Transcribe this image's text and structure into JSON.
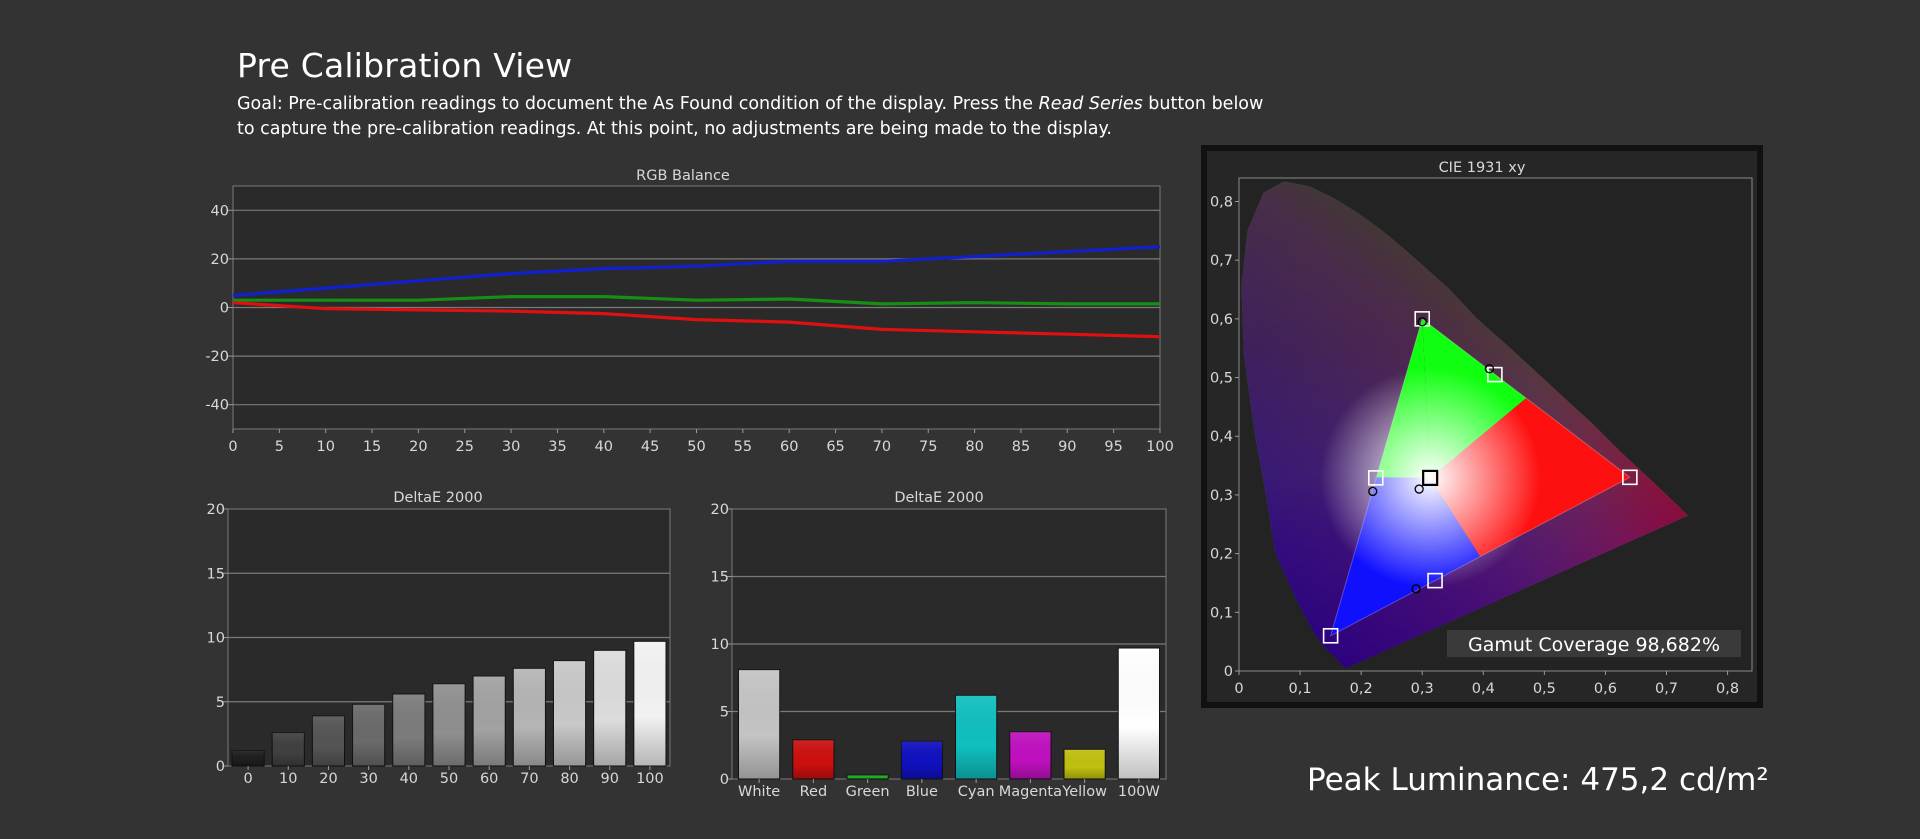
{
  "header": {
    "title": "Pre Calibration View",
    "goal_prefix": "Goal: Pre-calibration readings to document the As Found condition of the display. Press the ",
    "goal_emphasis": "Read Series",
    "goal_suffix": " button below to capture the pre-calibration readings. At this point, no adjustments are being made to the display."
  },
  "peak_luminance": "Peak Luminance: 475,2 cd/m²",
  "gamut_coverage": "Gamut Coverage 98,682%",
  "colors": {
    "background": "#333333",
    "panel": "#2a2a2a",
    "red_line": "#e01010",
    "green_line": "#159015",
    "blue_line": "#1020d0"
  },
  "chart_data": [
    {
      "id": "rgb_balance",
      "type": "line",
      "title": "RGB Balance",
      "x": [
        0,
        5,
        10,
        15,
        20,
        25,
        30,
        35,
        40,
        45,
        50,
        55,
        60,
        65,
        70,
        75,
        80,
        85,
        90,
        95,
        100
      ],
      "x_ticks": [
        "0",
        "5",
        "10",
        "15",
        "20",
        "25",
        "30",
        "35",
        "40",
        "45",
        "50",
        "55",
        "60",
        "65",
        "70",
        "75",
        "80",
        "85",
        "90",
        "95",
        "100"
      ],
      "y_ticks": [
        "40",
        "20",
        "0",
        "-20",
        "-40"
      ],
      "y_tick_values": [
        40,
        20,
        0,
        -20,
        -40
      ],
      "xlim": [
        0,
        100
      ],
      "ylim": [
        -50,
        50
      ],
      "grid": true,
      "series": [
        {
          "color": "#1020d0",
          "points": [
            [
              0,
              5
            ],
            [
              10,
              8
            ],
            [
              20,
              11
            ],
            [
              30,
              14
            ],
            [
              40,
              16
            ],
            [
              50,
              17
            ],
            [
              60,
              19
            ],
            [
              70,
              19
            ],
            [
              80,
              21
            ],
            [
              90,
              23
            ],
            [
              100,
              25
            ]
          ]
        },
        {
          "color": "#159015",
          "points": [
            [
              0,
              3
            ],
            [
              10,
              3
            ],
            [
              20,
              3
            ],
            [
              30,
              4.5
            ],
            [
              40,
              4.5
            ],
            [
              50,
              3
            ],
            [
              60,
              3.5
            ],
            [
              70,
              1.5
            ],
            [
              80,
              2
            ],
            [
              90,
              1.5
            ],
            [
              100,
              1.5
            ]
          ]
        },
        {
          "color": "#e01010",
          "points": [
            [
              0,
              2
            ],
            [
              10,
              -0.5
            ],
            [
              20,
              -1
            ],
            [
              30,
              -1.5
            ],
            [
              40,
              -2.5
            ],
            [
              50,
              -5
            ],
            [
              60,
              -6
            ],
            [
              70,
              -9
            ],
            [
              80,
              -10
            ],
            [
              90,
              -11
            ],
            [
              100,
              -12
            ]
          ]
        }
      ]
    },
    {
      "id": "deltae_grayscale",
      "type": "bar",
      "title": "DeltaE 2000",
      "categories": [
        "0",
        "10",
        "20",
        "30",
        "40",
        "50",
        "60",
        "70",
        "80",
        "90",
        "100"
      ],
      "values": [
        1.2,
        2.6,
        3.9,
        4.8,
        5.6,
        6.4,
        7.0,
        7.6,
        8.2,
        9.0,
        9.7
      ],
      "colors": [
        "#1e1e1e",
        "#404040",
        "#555555",
        "#6a6a6a",
        "#7c7c7c",
        "#8f8f8f",
        "#a2a2a2",
        "#b5b5b5",
        "#c8c8c8",
        "#dcdcdc",
        "#f2f2f2"
      ],
      "y_ticks": [
        "20",
        "15",
        "10",
        "5",
        "0"
      ],
      "y_tick_values": [
        20,
        15,
        10,
        5,
        0
      ],
      "ylim": [
        0,
        20
      ],
      "grid": true
    },
    {
      "id": "deltae_colors",
      "type": "bar",
      "title": "DeltaE 2000",
      "categories": [
        "White",
        "Red",
        "Green",
        "Blue",
        "Cyan",
        "Magenta",
        "Yellow",
        "100W"
      ],
      "values": [
        8.1,
        2.9,
        0.3,
        2.8,
        6.2,
        3.5,
        2.2,
        9.7
      ],
      "colors": [
        "#c4c4c4",
        "#cc1010",
        "#20b020",
        "#1010c0",
        "#10c0c0",
        "#c010c0",
        "#c0c010",
        "#ffffff"
      ],
      "y_ticks": [
        "20",
        "15",
        "10",
        "5",
        "0"
      ],
      "y_tick_values": [
        20,
        15,
        10,
        5,
        0
      ],
      "ylim": [
        0,
        20
      ],
      "grid": true
    },
    {
      "id": "cie_1931",
      "type": "scatter",
      "title": "CIE 1931 xy",
      "x_ticks": [
        "0",
        "0,1",
        "0,2",
        "0,3",
        "0,4",
        "0,5",
        "0,6",
        "0,7",
        "0,8"
      ],
      "x_tick_values": [
        0,
        0.1,
        0.2,
        0.3,
        0.4,
        0.5,
        0.6,
        0.7,
        0.8
      ],
      "y_ticks": [
        "0,8",
        "0,7",
        "0,6",
        "0,5",
        "0,4",
        "0,3",
        "0,2",
        "0,1",
        "0"
      ],
      "y_tick_values": [
        0.8,
        0.7,
        0.6,
        0.5,
        0.4,
        0.3,
        0.2,
        0.1,
        0
      ],
      "xlim": [
        0,
        0.84
      ],
      "ylim": [
        0,
        0.84
      ],
      "targets": [
        {
          "x": 0.3,
          "y": 0.6
        },
        {
          "x": 0.419,
          "y": 0.505
        },
        {
          "x": 0.64,
          "y": 0.33
        },
        {
          "x": 0.313,
          "y": 0.329
        },
        {
          "x": 0.224,
          "y": 0.329
        },
        {
          "x": 0.321,
          "y": 0.154
        },
        {
          "x": 0.15,
          "y": 0.06
        }
      ],
      "measured": [
        {
          "x": 0.3,
          "y": 0.595
        },
        {
          "x": 0.41,
          "y": 0.515
        },
        {
          "x": 0.295,
          "y": 0.31
        },
        {
          "x": 0.219,
          "y": 0.306
        },
        {
          "x": 0.29,
          "y": 0.14
        }
      ]
    }
  ]
}
